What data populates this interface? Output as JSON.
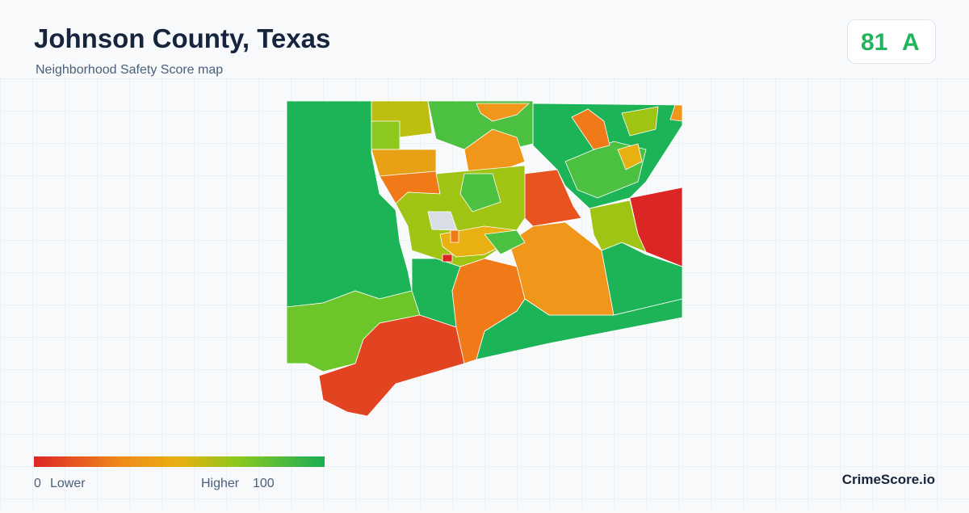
{
  "header": {
    "title": "Johnson County, Texas",
    "subtitle": "Neighborhood Safety Score map"
  },
  "score": {
    "value": 81,
    "grade": "A"
  },
  "legend": {
    "min": 0,
    "min_label": "Lower",
    "max_label": "Higher",
    "max": 100
  },
  "footer": {
    "brand": "CrimeScore.io"
  }
}
